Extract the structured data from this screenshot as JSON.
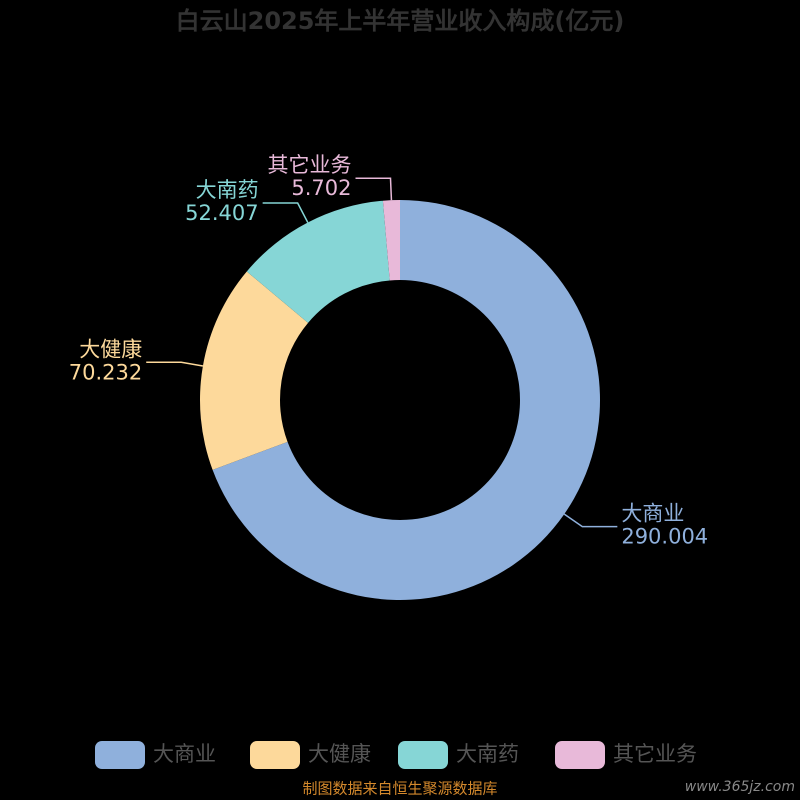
{
  "chart_data": {
    "type": "donut",
    "title": "白云山2025年上半年营业收入构成(亿元)",
    "categories": [
      "大商业",
      "大健康",
      "大南药",
      "其它业务"
    ],
    "values": [
      290.004,
      70.232,
      52.407,
      5.702
    ],
    "colors": [
      "#8fb0dc",
      "#fdd99b",
      "#86d6d6",
      "#e8b9d9"
    ],
    "source": "制图数据来自恒生聚源数据库",
    "watermark": "www.365jz.com"
  }
}
